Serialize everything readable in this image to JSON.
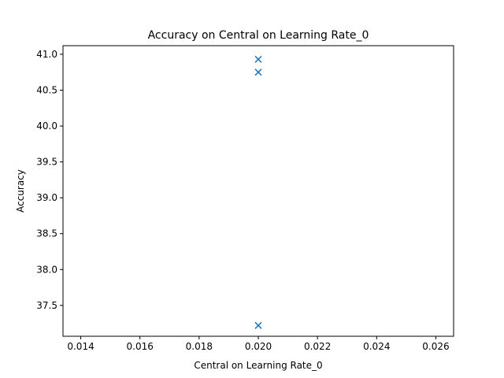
{
  "chart_data": {
    "type": "scatter",
    "title": "Accuracy on Central on Learning Rate_0",
    "xlabel": "Central on Learning Rate_0",
    "ylabel": "Accuracy",
    "xlim": [
      0.0134,
      0.0266
    ],
    "ylim": [
      37.07,
      41.12
    ],
    "x_ticks": [
      "0.014",
      "0.016",
      "0.018",
      "0.020",
      "0.022",
      "0.024",
      "0.026"
    ],
    "y_ticks": [
      "37.5",
      "38.0",
      "38.5",
      "39.0",
      "39.5",
      "40.0",
      "40.5",
      "41.0"
    ],
    "marker": "x",
    "grid": false,
    "series": [
      {
        "color": "#1f77b4",
        "points": [
          {
            "x": 0.02,
            "y": 40.93
          },
          {
            "x": 0.02,
            "y": 40.75
          },
          {
            "x": 0.02,
            "y": 37.22
          }
        ]
      }
    ]
  }
}
